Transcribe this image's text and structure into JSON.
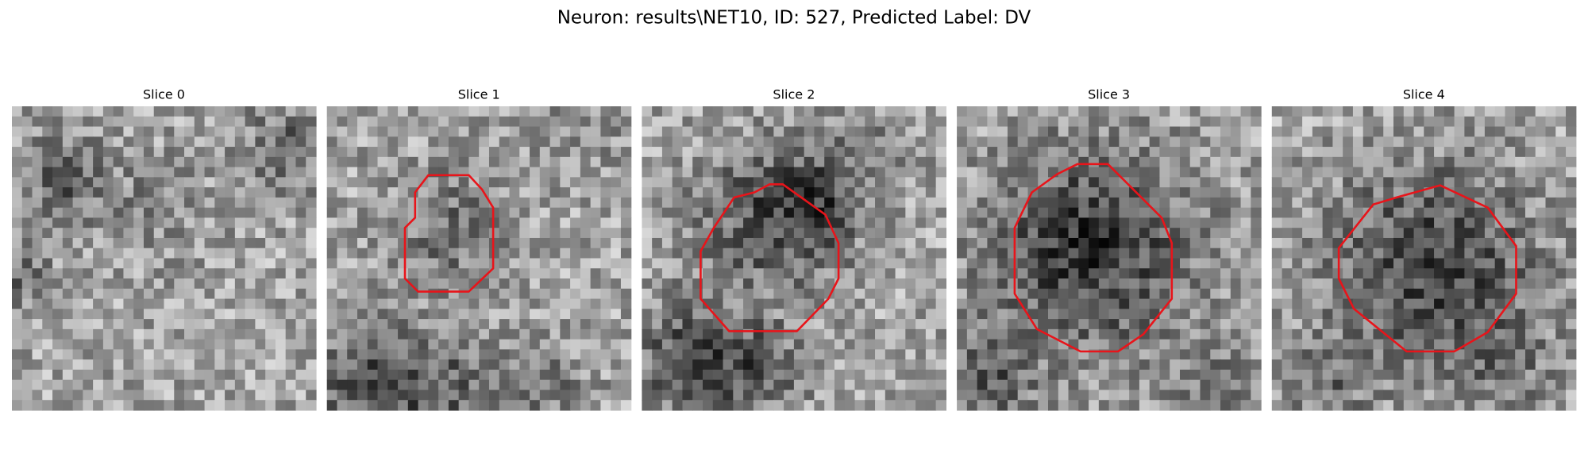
{
  "title": "Neuron: results\\NET10, ID: 527, Predicted Label: DV",
  "panels": [
    {
      "title": "Slice 0"
    },
    {
      "title": "Slice 1"
    },
    {
      "title": "Slice 2"
    },
    {
      "title": "Slice 3"
    },
    {
      "title": "Slice 4"
    }
  ]
}
